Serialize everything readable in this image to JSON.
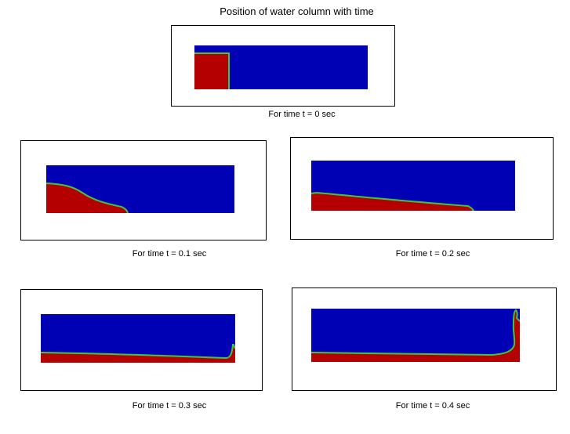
{
  "title": "Position of water column with time",
  "colors": {
    "air": "#0000b4",
    "water": "#b40000",
    "interface": "#3cc83c",
    "frame": "#000000",
    "background": "#ffffff"
  },
  "panels": [
    {
      "id": "t0",
      "caption": "For time t = 0 sec"
    },
    {
      "id": "t0_1",
      "caption": "For time t = 0.1 sec"
    },
    {
      "id": "t0_2",
      "caption": "For time t = 0.2 sec"
    },
    {
      "id": "t0_3",
      "caption": "For time t = 0.3 sec"
    },
    {
      "id": "t0_4",
      "caption": "For time t = 0.4 sec"
    }
  ]
}
